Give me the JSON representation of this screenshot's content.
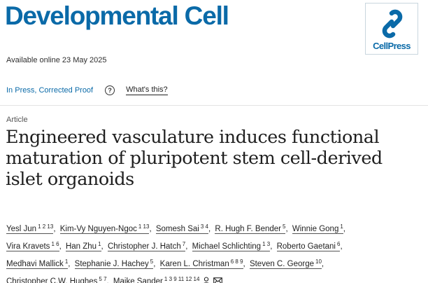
{
  "journal": {
    "title": "Developmental Cell"
  },
  "publisher": {
    "logo_text": "CellPress",
    "logo_color": "#0a6aa8"
  },
  "availability": {
    "text": "Available online 23 May 2025"
  },
  "status": {
    "link": "In Press, Corrected Proof",
    "help_icon": "question-circle-icon",
    "whats_this": "What's this?"
  },
  "article": {
    "type": "Article",
    "title_lines": [
      "Engineered vasculature induces functional",
      "maturation of pluripotent stem cell-derived",
      "islet organoids"
    ]
  },
  "authors": [
    {
      "name": "Yesl Jun",
      "sup": "1 2 13"
    },
    {
      "name": "Kim-Vy Nguyen-Ngoc",
      "sup": "1 13"
    },
    {
      "name": "Somesh Sai",
      "sup": "3 4"
    },
    {
      "name": "R. Hugh F. Bender",
      "sup": "5"
    },
    {
      "name": "Winnie Gong",
      "sup": "1"
    },
    {
      "name": "Vira Kravets",
      "sup": "1 6"
    },
    {
      "name": "Han Zhu",
      "sup": "1"
    },
    {
      "name": "Christopher J. Hatch",
      "sup": "7"
    },
    {
      "name": "Michael Schlichting",
      "sup": "1 3"
    },
    {
      "name": "Roberto Gaetani",
      "sup": "6"
    },
    {
      "name": "Medhavi Mallick",
      "sup": "1"
    },
    {
      "name": "Stephanie J. Hachey",
      "sup": "5"
    },
    {
      "name": "Karen L. Christman",
      "sup": "6 8 9"
    },
    {
      "name": "Steven C. George",
      "sup": "10"
    },
    {
      "name": "Christopher C.W. Hughes",
      "sup": "5 7"
    },
    {
      "name": "Maike Sander",
      "sup": "1 3 9 11 12 14"
    }
  ],
  "author_icons": [
    "person-icon",
    "envelope-icon"
  ]
}
